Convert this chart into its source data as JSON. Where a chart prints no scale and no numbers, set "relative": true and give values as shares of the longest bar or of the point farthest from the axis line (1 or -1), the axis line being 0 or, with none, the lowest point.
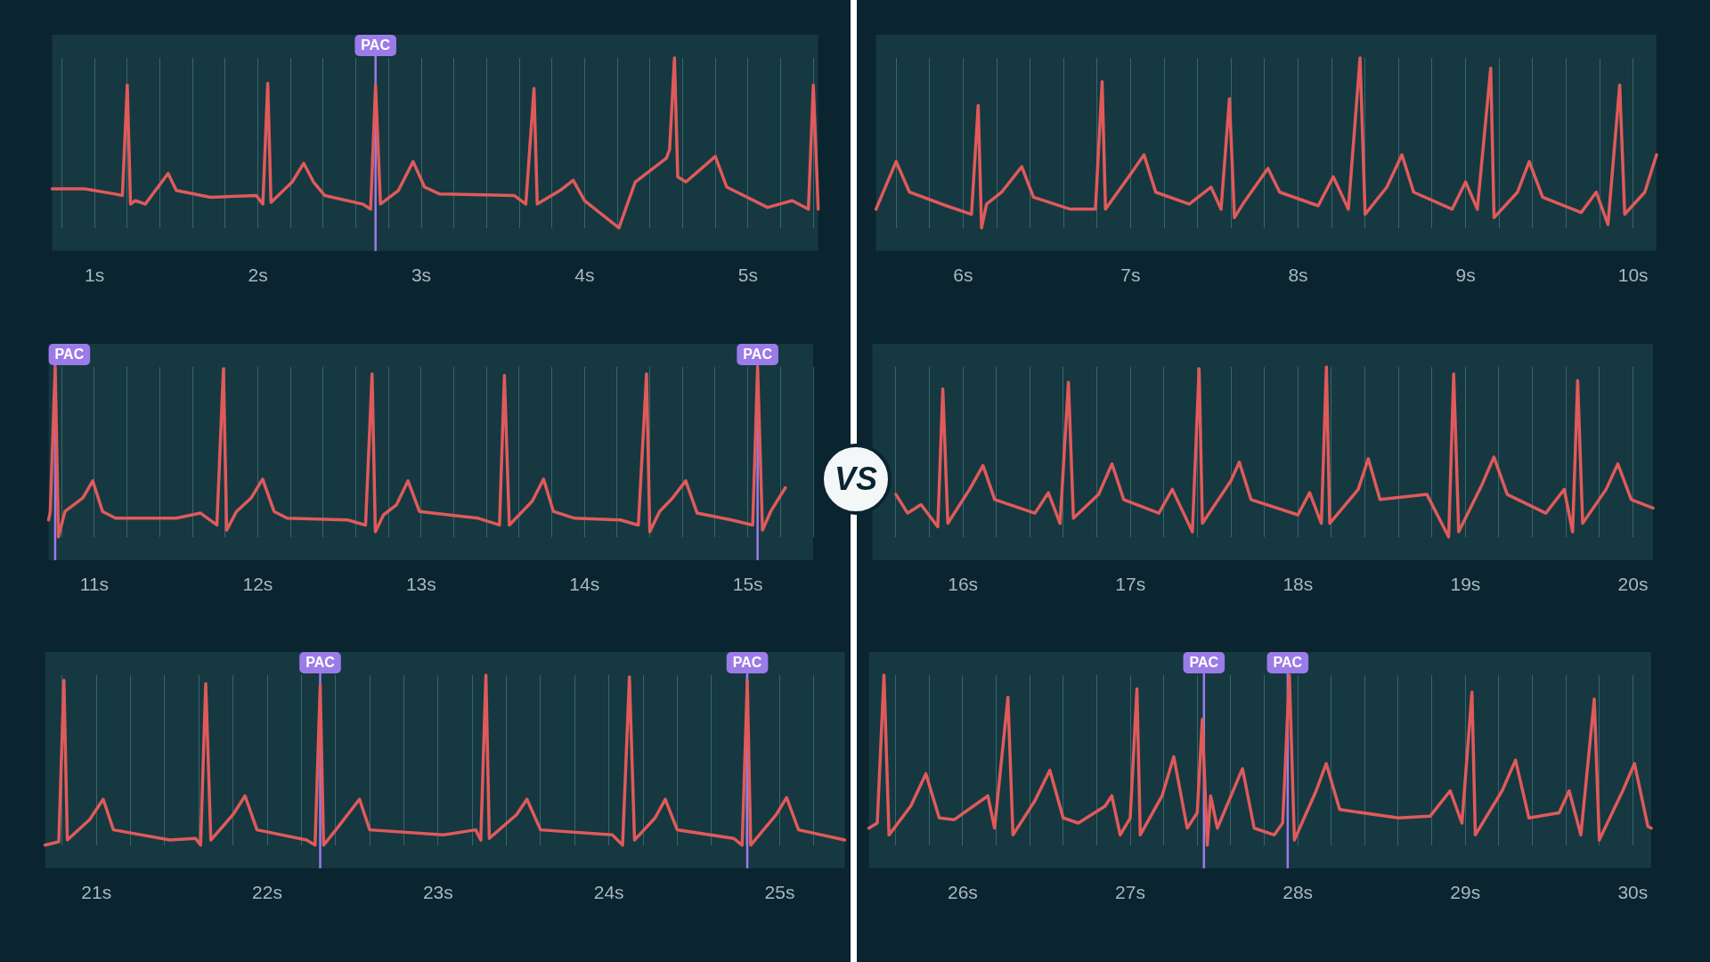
{
  "chart_data": [
    {
      "type": "line",
      "relative": true,
      "grid": "x",
      "xlim": [
        0.74,
        5.43
      ],
      "xticks": [
        {
          "value": 0.8,
          "label": null
        },
        {
          "value": 1,
          "label": "1s"
        },
        {
          "value": 1.2,
          "label": null
        },
        {
          "value": 1.4,
          "label": null
        },
        {
          "value": 1.6,
          "label": null
        },
        {
          "value": 1.8,
          "label": null
        },
        {
          "value": 2,
          "label": "2s"
        },
        {
          "value": 2.2,
          "label": null
        },
        {
          "value": 2.4,
          "label": null
        },
        {
          "value": 2.6,
          "label": null
        },
        {
          "value": 2.8,
          "label": null
        },
        {
          "value": 3,
          "label": "3s"
        },
        {
          "value": 3.2,
          "label": null
        },
        {
          "value": 3.4,
          "label": null
        },
        {
          "value": 3.6,
          "label": null
        },
        {
          "value": 3.8,
          "label": null
        },
        {
          "value": 4,
          "label": "4s"
        },
        {
          "value": 4.2,
          "label": null
        },
        {
          "value": 4.4,
          "label": null
        },
        {
          "value": 4.6,
          "label": null
        },
        {
          "value": 4.8,
          "label": null
        },
        {
          "value": 5,
          "label": "5s"
        },
        {
          "value": 5.2,
          "label": null
        },
        {
          "value": 5.4,
          "label": null
        }
      ],
      "x": [
        0.74,
        0.94,
        1.12,
        1.17,
        1.2,
        1.22,
        1.25,
        1.31,
        1.45,
        1.5,
        1.71,
        1.99,
        2.03,
        2.06,
        2.08,
        2.21,
        2.28,
        2.34,
        2.41,
        2.64,
        2.69,
        2.72,
        2.75,
        2.86,
        2.95,
        3.02,
        3.11,
        3.57,
        3.64,
        3.69,
        3.71,
        3.85,
        3.93,
        4.0,
        4.21,
        4.31,
        4.5,
        4.52,
        4.55,
        4.57,
        4.62,
        4.8,
        4.87,
        5.12,
        5.27,
        5.37,
        5.4,
        5.43
      ],
      "series": [
        {
          "color": "#e05a5a",
          "values": [
            0.23,
            0.23,
            0.2,
            0.19,
            0.84,
            0.14,
            0.16,
            0.14,
            0.32,
            0.22,
            0.18,
            0.19,
            0.14,
            0.85,
            0.15,
            0.27,
            0.38,
            0.27,
            0.19,
            0.14,
            0.11,
            0.84,
            0.14,
            0.22,
            0.39,
            0.24,
            0.2,
            0.19,
            0.14,
            0.82,
            0.14,
            0.22,
            0.28,
            0.16,
            0,
            0.27,
            0.41,
            0.46,
            1,
            0.3,
            0.27,
            0.42,
            0.24,
            0.12,
            0.16,
            0.11,
            0.84,
            0.11
          ]
        }
      ],
      "ref_lines": [
        {
          "axis": "x",
          "value": 2.72,
          "label": "PAC",
          "color": "#9b7be8"
        }
      ]
    },
    {
      "type": "line",
      "relative": true,
      "grid": "x",
      "xlim": [
        5.48,
        10.14
      ],
      "xticks": [
        {
          "value": 5.6,
          "label": null
        },
        {
          "value": 5.8,
          "label": null
        },
        {
          "value": 6,
          "label": "6s"
        },
        {
          "value": 6.2,
          "label": null
        },
        {
          "value": 6.4,
          "label": null
        },
        {
          "value": 6.6,
          "label": null
        },
        {
          "value": 6.8,
          "label": null
        },
        {
          "value": 7,
          "label": "7s"
        },
        {
          "value": 7.2,
          "label": null
        },
        {
          "value": 7.4,
          "label": null
        },
        {
          "value": 7.6,
          "label": null
        },
        {
          "value": 7.8,
          "label": null
        },
        {
          "value": 8,
          "label": "8s"
        },
        {
          "value": 8.2,
          "label": null
        },
        {
          "value": 8.4,
          "label": null
        },
        {
          "value": 8.6,
          "label": null
        },
        {
          "value": 8.8,
          "label": null
        },
        {
          "value": 9,
          "label": "9s"
        },
        {
          "value": 9.2,
          "label": null
        },
        {
          "value": 9.4,
          "label": null
        },
        {
          "value": 9.6,
          "label": null
        },
        {
          "value": 9.8,
          "label": null
        },
        {
          "value": 10,
          "label": "10s"
        }
      ],
      "x": [
        5.48,
        5.6,
        5.68,
        5.9,
        6.05,
        6.09,
        6.11,
        6.14,
        6.23,
        6.35,
        6.42,
        6.64,
        6.79,
        6.83,
        6.85,
        7.01,
        7.08,
        7.15,
        7.35,
        7.48,
        7.54,
        7.59,
        7.62,
        7.67,
        7.82,
        7.89,
        8.12,
        8.21,
        8.3,
        8.37,
        8.4,
        8.53,
        8.62,
        8.69,
        8.92,
        9.0,
        9.07,
        9.15,
        9.17,
        9.31,
        9.38,
        9.46,
        9.69,
        9.78,
        9.85,
        9.92,
        9.95,
        10.07,
        10.14
      ],
      "series": [
        {
          "color": "#e05a5a",
          "values": [
            0.11,
            0.39,
            0.21,
            0.13,
            0.08,
            0.72,
            0,
            0.14,
            0.21,
            0.36,
            0.18,
            0.11,
            0.11,
            0.86,
            0.11,
            0.33,
            0.43,
            0.21,
            0.14,
            0.24,
            0.11,
            0.76,
            0.06,
            0.14,
            0.35,
            0.21,
            0.13,
            0.3,
            0.11,
            1,
            0.08,
            0.24,
            0.43,
            0.21,
            0.11,
            0.27,
            0.11,
            0.94,
            0.06,
            0.21,
            0.39,
            0.18,
            0.09,
            0.21,
            0.02,
            0.84,
            0.08,
            0.21,
            0.43
          ]
        }
      ]
    },
    {
      "type": "line",
      "relative": true,
      "grid": "x",
      "xlim": [
        10.72,
        15.4
      ],
      "xticks": [
        {
          "value": 10.8,
          "label": null
        },
        {
          "value": 11,
          "label": "11s"
        },
        {
          "value": 11.2,
          "label": null
        },
        {
          "value": 11.4,
          "label": null
        },
        {
          "value": 11.6,
          "label": null
        },
        {
          "value": 11.8,
          "label": null
        },
        {
          "value": 12,
          "label": "12s"
        },
        {
          "value": 12.2,
          "label": null
        },
        {
          "value": 12.4,
          "label": null
        },
        {
          "value": 12.6,
          "label": null
        },
        {
          "value": 12.8,
          "label": null
        },
        {
          "value": 13,
          "label": "13s"
        },
        {
          "value": 13.2,
          "label": null
        },
        {
          "value": 13.4,
          "label": null
        },
        {
          "value": 13.6,
          "label": null
        },
        {
          "value": 13.8,
          "label": null
        },
        {
          "value": 14,
          "label": "14s"
        },
        {
          "value": 14.2,
          "label": null
        },
        {
          "value": 14.4,
          "label": null
        },
        {
          "value": 14.6,
          "label": null
        },
        {
          "value": 14.8,
          "label": null
        },
        {
          "value": 15,
          "label": "15s"
        },
        {
          "value": 15.2,
          "label": null
        },
        {
          "value": 15.4,
          "label": null
        }
      ],
      "x": [
        10.72,
        10.73,
        10.76,
        10.78,
        10.82,
        10.93,
        10.99,
        11.05,
        11.13,
        11.5,
        11.65,
        11.75,
        11.79,
        11.81,
        11.87,
        11.96,
        12.03,
        12.1,
        12.18,
        12.55,
        12.66,
        12.7,
        12.72,
        12.77,
        12.85,
        12.92,
        12.99,
        13.35,
        13.48,
        13.51,
        13.54,
        13.68,
        13.75,
        13.81,
        13.94,
        14.22,
        14.33,
        14.38,
        14.4,
        14.46,
        14.54,
        14.62,
        14.69,
        14.9,
        15.03,
        15.06,
        15.09,
        15.14,
        15.23
      ],
      "series": [
        {
          "color": "#e05a5a",
          "values": [
            0.1,
            0.15,
            1,
            0,
            0.15,
            0.23,
            0.33,
            0.15,
            0.11,
            0.11,
            0.14,
            0.07,
            0.99,
            0.04,
            0.15,
            0.23,
            0.34,
            0.15,
            0.11,
            0.1,
            0.07,
            0.96,
            0.03,
            0.13,
            0.19,
            0.33,
            0.15,
            0.11,
            0.07,
            0.95,
            0.07,
            0.21,
            0.34,
            0.15,
            0.11,
            0.1,
            0.07,
            0.96,
            0.03,
            0.15,
            0.23,
            0.33,
            0.14,
            0.1,
            0.07,
            1,
            0.04,
            0.15,
            0.29
          ]
        }
      ],
      "ref_lines": [
        {
          "axis": "x",
          "value": 10.76,
          "label": "PAC",
          "color": "#9b7be8"
        },
        {
          "axis": "x",
          "value": 15.06,
          "label": "PAC",
          "color": "#9b7be8"
        }
      ]
    },
    {
      "type": "line",
      "relative": true,
      "grid": "x",
      "xlim": [
        15.46,
        20.12
      ],
      "xticks": [
        {
          "value": 15.6,
          "label": null
        },
        {
          "value": 15.8,
          "label": null
        },
        {
          "value": 16,
          "label": "16s"
        },
        {
          "value": 16.2,
          "label": null
        },
        {
          "value": 16.4,
          "label": null
        },
        {
          "value": 16.6,
          "label": null
        },
        {
          "value": 16.8,
          "label": null
        },
        {
          "value": 17,
          "label": "17s"
        },
        {
          "value": 17.2,
          "label": null
        },
        {
          "value": 17.4,
          "label": null
        },
        {
          "value": 17.6,
          "label": null
        },
        {
          "value": 17.8,
          "label": null
        },
        {
          "value": 18,
          "label": "18s"
        },
        {
          "value": 18.2,
          "label": null
        },
        {
          "value": 18.4,
          "label": null
        },
        {
          "value": 18.6,
          "label": null
        },
        {
          "value": 18.8,
          "label": null
        },
        {
          "value": 19,
          "label": "19s"
        },
        {
          "value": 19.2,
          "label": null
        },
        {
          "value": 19.4,
          "label": null
        },
        {
          "value": 19.6,
          "label": null
        },
        {
          "value": 19.8,
          "label": null
        },
        {
          "value": 20,
          "label": "20s"
        }
      ],
      "x": [
        15.6,
        15.67,
        15.75,
        15.85,
        15.88,
        15.91,
        16.04,
        16.12,
        16.19,
        16.43,
        16.51,
        16.58,
        16.63,
        16.66,
        16.81,
        16.89,
        16.96,
        17.17,
        17.25,
        17.37,
        17.41,
        17.43,
        17.6,
        17.65,
        17.72,
        18.0,
        18.07,
        18.14,
        18.17,
        18.19,
        18.36,
        18.42,
        18.49,
        18.77,
        18.9,
        18.93,
        18.96,
        19.1,
        19.17,
        19.25,
        19.48,
        19.59,
        19.64,
        19.67,
        19.7,
        19.84,
        19.91,
        19.99,
        20.12
      ],
      "series": [
        {
          "color": "#e05a5a",
          "values": [
            0.25,
            0.14,
            0.19,
            0.06,
            0.87,
            0.08,
            0.28,
            0.42,
            0.22,
            0.14,
            0.26,
            0.08,
            0.91,
            0.11,
            0.25,
            0.43,
            0.22,
            0.14,
            0.28,
            0.03,
            0.99,
            0.08,
            0.33,
            0.44,
            0.22,
            0.13,
            0.26,
            0.08,
            1,
            0.08,
            0.28,
            0.46,
            0.22,
            0.25,
            0,
            0.96,
            0.03,
            0.31,
            0.47,
            0.25,
            0.14,
            0.28,
            0.03,
            0.92,
            0.08,
            0.28,
            0.43,
            0.22,
            0.17
          ]
        }
      ],
      "annotations": [
        "VS"
      ]
    },
    {
      "type": "line",
      "relative": true,
      "grid": "x",
      "xlim": [
        20.7,
        25.38
      ],
      "xticks": [
        {
          "value": 20.8,
          "label": null
        },
        {
          "value": 21,
          "label": "21s"
        },
        {
          "value": 21.2,
          "label": null
        },
        {
          "value": 21.4,
          "label": null
        },
        {
          "value": 21.6,
          "label": null
        },
        {
          "value": 21.8,
          "label": null
        },
        {
          "value": 22,
          "label": "22s"
        },
        {
          "value": 22.2,
          "label": null
        },
        {
          "value": 22.4,
          "label": null
        },
        {
          "value": 22.6,
          "label": null
        },
        {
          "value": 22.8,
          "label": null
        },
        {
          "value": 23,
          "label": "23s"
        },
        {
          "value": 23.2,
          "label": null
        },
        {
          "value": 23.4,
          "label": null
        },
        {
          "value": 23.6,
          "label": null
        },
        {
          "value": 23.8,
          "label": null
        },
        {
          "value": 24,
          "label": "24s"
        },
        {
          "value": 24.2,
          "label": null
        },
        {
          "value": 24.4,
          "label": null
        },
        {
          "value": 24.6,
          "label": null
        },
        {
          "value": 24.8,
          "label": null
        },
        {
          "value": 25,
          "label": "25s"
        },
        {
          "value": 25.2,
          "label": null
        }
      ],
      "x": [
        20.7,
        20.78,
        20.81,
        20.83,
        20.96,
        21.04,
        21.1,
        21.43,
        21.58,
        21.61,
        21.64,
        21.67,
        21.8,
        21.87,
        21.94,
        22.23,
        22.28,
        22.31,
        22.33,
        22.41,
        22.54,
        22.6,
        23.03,
        23.22,
        23.25,
        23.28,
        23.3,
        23.46,
        23.52,
        23.6,
        24.02,
        24.08,
        24.12,
        24.15,
        24.27,
        24.33,
        24.4,
        24.73,
        24.78,
        24.81,
        24.83,
        24.98,
        25.04,
        25.11,
        25.38
      ],
      "series": [
        {
          "color": "#e05a5a",
          "values": [
            0,
            0.02,
            0.97,
            0.03,
            0.15,
            0.27,
            0.09,
            0.03,
            0.04,
            0,
            0.95,
            0.03,
            0.18,
            0.29,
            0.09,
            0.03,
            0,
            0.94,
            0,
            0.1,
            0.27,
            0.09,
            0.06,
            0.09,
            0.03,
            1,
            0.04,
            0.18,
            0.27,
            0.09,
            0.06,
            0,
            0.99,
            0.03,
            0.16,
            0.27,
            0.09,
            0.04,
            0,
            0.97,
            0,
            0.18,
            0.28,
            0.09,
            0.03
          ]
        }
      ],
      "ref_lines": [
        {
          "axis": "x",
          "value": 22.31,
          "label": "PAC",
          "color": "#9b7be8"
        },
        {
          "axis": "x",
          "value": 24.81,
          "label": "PAC",
          "color": "#9b7be8"
        }
      ]
    },
    {
      "type": "line",
      "relative": true,
      "grid": "x",
      "xlim": [
        25.44,
        30.11
      ],
      "xticks": [
        {
          "value": 25.6,
          "label": null
        },
        {
          "value": 25.8,
          "label": null
        },
        {
          "value": 26,
          "label": "26s"
        },
        {
          "value": 26.2,
          "label": null
        },
        {
          "value": 26.4,
          "label": null
        },
        {
          "value": 26.6,
          "label": null
        },
        {
          "value": 26.8,
          "label": null
        },
        {
          "value": 27,
          "label": "27s"
        },
        {
          "value": 27.2,
          "label": null
        },
        {
          "value": 27.4,
          "label": null
        },
        {
          "value": 27.6,
          "label": null
        },
        {
          "value": 27.8,
          "label": null
        },
        {
          "value": 28,
          "label": "28s"
        },
        {
          "value": 28.2,
          "label": null
        },
        {
          "value": 28.4,
          "label": null
        },
        {
          "value": 28.6,
          "label": null
        },
        {
          "value": 28.8,
          "label": null
        },
        {
          "value": 29,
          "label": "29s"
        },
        {
          "value": 29.2,
          "label": null
        },
        {
          "value": 29.4,
          "label": null
        },
        {
          "value": 29.6,
          "label": null
        },
        {
          "value": 29.8,
          "label": null
        },
        {
          "value": 30,
          "label": "30s"
        }
      ],
      "x": [
        25.44,
        25.49,
        25.53,
        25.56,
        25.69,
        25.78,
        25.86,
        25.95,
        26.15,
        26.19,
        26.27,
        26.3,
        26.43,
        26.52,
        26.6,
        26.69,
        26.85,
        26.89,
        26.94,
        27.0,
        27.04,
        27.06,
        27.19,
        27.26,
        27.34,
        27.4,
        27.43,
        27.46,
        27.48,
        27.52,
        27.67,
        27.74,
        27.86,
        27.91,
        27.95,
        27.98,
        28.11,
        28.17,
        28.25,
        28.6,
        28.79,
        28.91,
        28.98,
        29.04,
        29.06,
        29.22,
        29.3,
        29.38,
        29.56,
        29.62,
        29.69,
        29.77,
        29.8,
        29.94,
        30.01,
        30.09,
        30.11
      ],
      "series": [
        {
          "color": "#e05a5a",
          "values": [
            0.1,
            0.13,
            1,
            0.06,
            0.23,
            0.42,
            0.16,
            0.15,
            0.29,
            0.1,
            0.87,
            0.06,
            0.26,
            0.44,
            0.16,
            0.13,
            0.23,
            0.29,
            0.06,
            0.16,
            0.92,
            0.06,
            0.29,
            0.52,
            0.1,
            0.19,
            0.74,
            0,
            0.29,
            0.1,
            0.45,
            0.1,
            0.06,
            0.13,
            1,
            0.03,
            0.32,
            0.48,
            0.21,
            0.16,
            0.17,
            0.32,
            0.13,
            0.9,
            0.06,
            0.32,
            0.5,
            0.16,
            0.19,
            0.32,
            0.06,
            0.86,
            0.03,
            0.32,
            0.48,
            0.11,
            0.1
          ]
        }
      ],
      "ref_lines": [
        {
          "axis": "x",
          "value": 27.44,
          "label": "PAC",
          "color": "#9b7be8"
        },
        {
          "axis": "x",
          "value": 27.94,
          "label": "PAC",
          "color": "#9b7be8"
        }
      ]
    }
  ]
}
